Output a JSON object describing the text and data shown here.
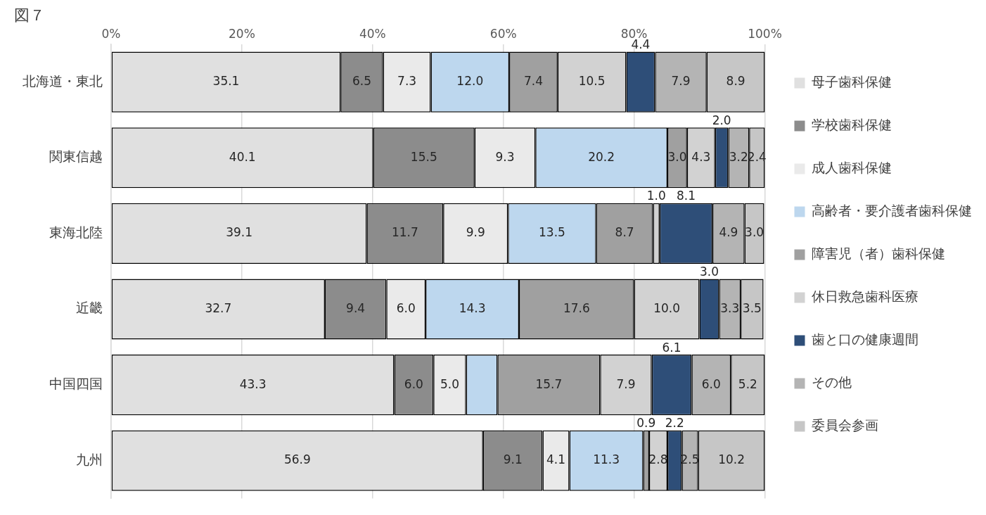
{
  "chart_data": {
    "type": "bar",
    "title": "図７",
    "orientation": "horizontal",
    "stacked": true,
    "grid": "x",
    "legend": "right",
    "categories": [
      "北海道・東北",
      "関東信越",
      "東海北陸",
      "近畿",
      "中国四国",
      "九州"
    ],
    "xlim": [
      0,
      100
    ],
    "xticks": [
      {
        "value": 0,
        "label": "0%"
      },
      {
        "value": 20,
        "label": "20%"
      },
      {
        "value": 40,
        "label": "40%"
      },
      {
        "value": 60,
        "label": "60%"
      },
      {
        "value": 80,
        "label": "80%"
      },
      {
        "value": 100,
        "label": "100%"
      }
    ],
    "series": [
      {
        "name": "母子歯科保健",
        "color": "#e0e0e0",
        "values": [
          35.1,
          40.1,
          39.1,
          32.7,
          43.3,
          56.9
        ],
        "value_labels": [
          "35.1",
          "40.1",
          "39.1",
          "32.7",
          "43.3",
          "56.9"
        ]
      },
      {
        "name": "学校歯科保健",
        "color": "#8c8c8c",
        "values": [
          6.5,
          15.5,
          11.7,
          9.4,
          6.0,
          9.1
        ],
        "value_labels": [
          "6.5",
          "15.5",
          "11.7",
          "9.4",
          "6.0",
          "9.1"
        ]
      },
      {
        "name": "成人歯科保健",
        "color": "#eaeaea",
        "values": [
          7.3,
          9.3,
          9.9,
          6.0,
          5.0,
          4.1
        ],
        "value_labels": [
          "7.3",
          "9.3",
          "9.9",
          "6.0",
          "5.0",
          "4.1"
        ]
      },
      {
        "name": "高齢者・要介護者歯科保健",
        "color": "#bdd7ee",
        "values": [
          12.0,
          20.2,
          13.5,
          14.3,
          4.8,
          11.3
        ],
        "value_labels": [
          "12.0",
          "20.2",
          "13.5",
          "14.3",
          null,
          "11.3"
        ]
      },
      {
        "name": "障害児（者）歯科保健",
        "color": "#a0a0a0",
        "values": [
          7.4,
          3.0,
          8.7,
          17.6,
          15.7,
          0.9
        ],
        "value_labels": [
          "7.4",
          "3.0",
          "8.7",
          "17.6",
          "15.7",
          "0.9"
        ]
      },
      {
        "name": "休日救急歯科医療",
        "color": "#d2d2d2",
        "values": [
          10.5,
          4.3,
          1.0,
          10.0,
          7.9,
          2.8
        ],
        "value_labels": [
          "10.5",
          "4.3",
          "1.0",
          "10.0",
          "7.9",
          "2.8"
        ]
      },
      {
        "name": "歯と口の健康週間",
        "color": "#2e4e78",
        "values": [
          4.4,
          2.0,
          8.1,
          3.0,
          6.1,
          2.2
        ],
        "value_labels": [
          "4.4",
          "2.0",
          "8.1",
          "3.0",
          "6.1",
          "2.2"
        ]
      },
      {
        "name": "その他",
        "color": "#b4b4b4",
        "values": [
          7.9,
          3.2,
          4.9,
          3.3,
          6.0,
          2.5
        ],
        "value_labels": [
          "7.9",
          "3.2",
          "4.9",
          "3.3",
          "6.0",
          "2.5"
        ]
      },
      {
        "name": "委員会参画",
        "color": "#c6c6c6",
        "values": [
          8.9,
          2.4,
          3.0,
          3.5,
          5.2,
          10.2
        ],
        "value_labels": [
          "8.9",
          "2.4",
          "3.0",
          "3.5",
          "5.2",
          "10.2"
        ]
      }
    ]
  }
}
